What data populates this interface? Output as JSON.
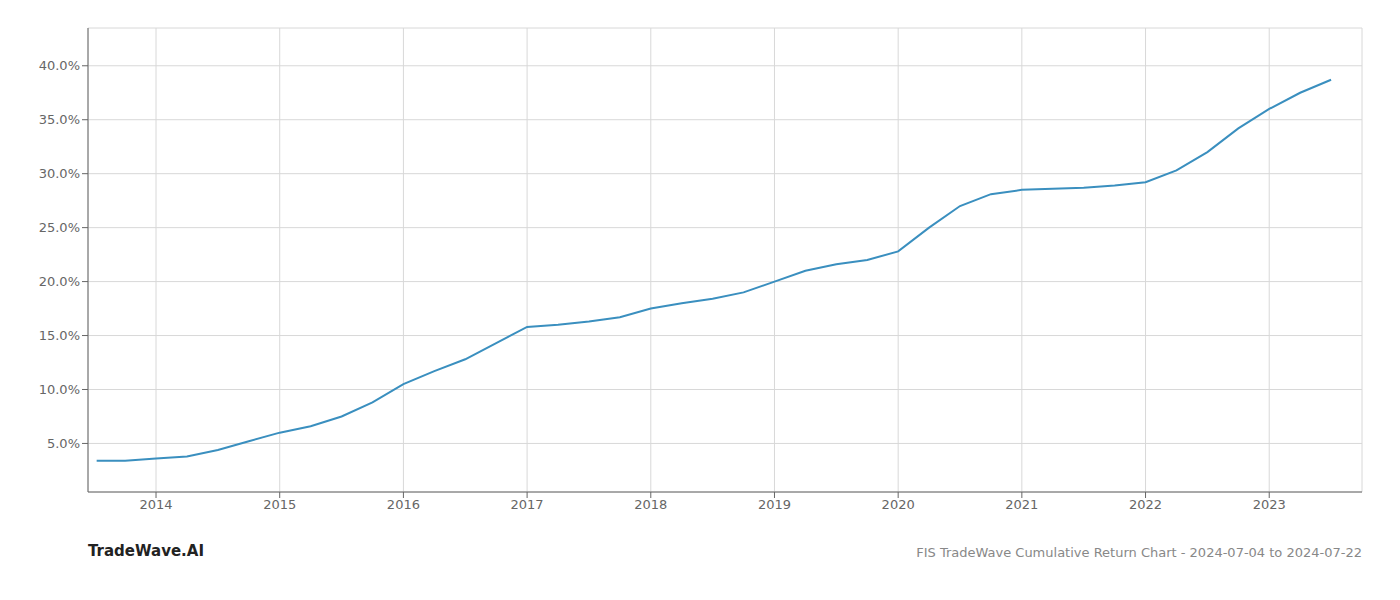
{
  "chart_data": {
    "type": "line",
    "title": "FIS TradeWave Cumulative Return Chart - 2024-07-04 to 2024-07-22",
    "annotations": [
      "TradeWave.AI"
    ],
    "x": [
      2013.52,
      2013.75,
      2014.0,
      2014.25,
      2014.5,
      2014.75,
      2015.0,
      2015.25,
      2015.5,
      2015.75,
      2016.0,
      2016.25,
      2016.5,
      2016.75,
      2017.0,
      2017.25,
      2017.5,
      2017.75,
      2018.0,
      2018.25,
      2018.5,
      2018.75,
      2019.0,
      2019.25,
      2019.5,
      2019.75,
      2020.0,
      2020.25,
      2020.5,
      2020.75,
      2021.0,
      2021.25,
      2021.5,
      2021.75,
      2022.0,
      2022.25,
      2022.5,
      2022.75,
      2023.0,
      2023.25,
      2023.5
    ],
    "values": [
      0.034,
      0.034,
      0.036,
      0.038,
      0.044,
      0.052,
      0.06,
      0.066,
      0.075,
      0.088,
      0.105,
      0.117,
      0.128,
      0.143,
      0.158,
      0.16,
      0.163,
      0.167,
      0.175,
      0.18,
      0.184,
      0.19,
      0.2,
      0.21,
      0.216,
      0.22,
      0.228,
      0.25,
      0.27,
      0.281,
      0.285,
      0.286,
      0.287,
      0.289,
      0.292,
      0.303,
      0.32,
      0.342,
      0.36,
      0.375,
      0.387
    ],
    "color": "#3a8fbf",
    "xlim": [
      2013.45,
      2023.75
    ],
    "ylim": [
      0.005,
      0.435
    ],
    "xticks": [
      2014,
      2015,
      2016,
      2017,
      2018,
      2019,
      2020,
      2021,
      2022,
      2023
    ],
    "yticks": [
      {
        "value": 0.05,
        "label": "5.0%"
      },
      {
        "value": 0.1,
        "label": "10.0%"
      },
      {
        "value": 0.15,
        "label": "15.0%"
      },
      {
        "value": 0.2,
        "label": "20.0%"
      },
      {
        "value": 0.25,
        "label": "25.0%"
      },
      {
        "value": 0.3,
        "label": "30.0%"
      },
      {
        "value": 0.35,
        "label": "35.0%"
      },
      {
        "value": 0.4,
        "label": "40.0%"
      }
    ],
    "grid": true
  }
}
